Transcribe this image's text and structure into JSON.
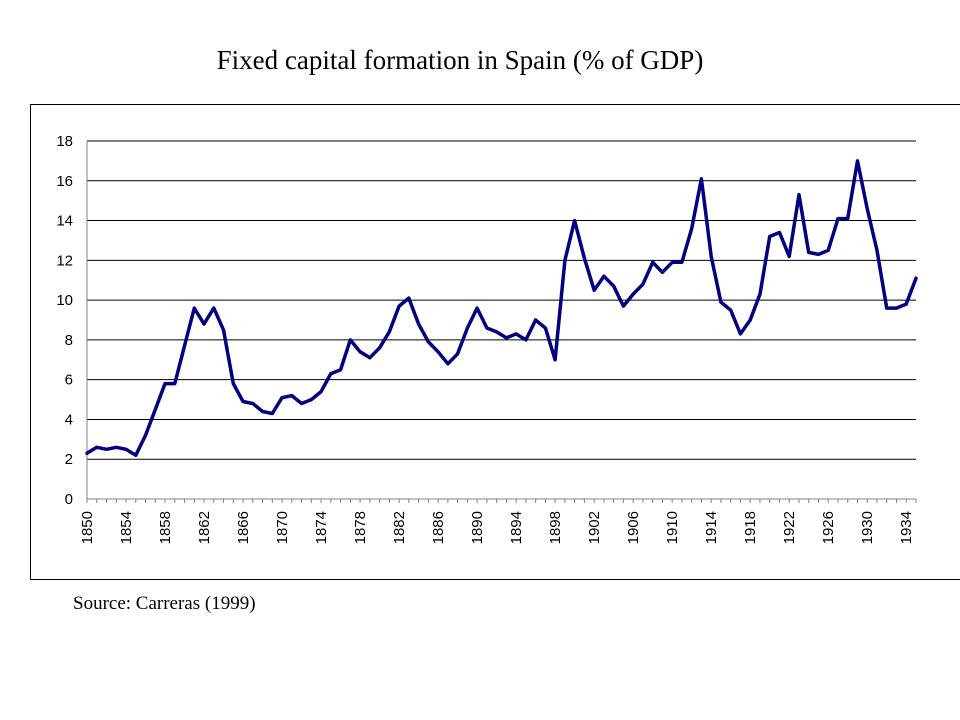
{
  "page": {
    "title": "Fixed capital formation in Spain (% of GDP)",
    "source": "Source: Carreras (1999)"
  },
  "chart_data": {
    "type": "line",
    "title": "Fixed capital formation in Spain (% of GDP)",
    "xlabel": "",
    "ylabel": "",
    "x": [
      1850,
      1851,
      1852,
      1853,
      1854,
      1855,
      1856,
      1857,
      1858,
      1859,
      1860,
      1861,
      1862,
      1863,
      1864,
      1865,
      1866,
      1867,
      1868,
      1869,
      1870,
      1871,
      1872,
      1873,
      1874,
      1875,
      1876,
      1877,
      1878,
      1879,
      1880,
      1881,
      1882,
      1883,
      1884,
      1885,
      1886,
      1887,
      1888,
      1889,
      1890,
      1891,
      1892,
      1893,
      1894,
      1895,
      1896,
      1897,
      1898,
      1899,
      1900,
      1901,
      1902,
      1903,
      1904,
      1905,
      1906,
      1907,
      1908,
      1909,
      1910,
      1911,
      1912,
      1913,
      1914,
      1915,
      1916,
      1917,
      1918,
      1919,
      1920,
      1921,
      1922,
      1923,
      1924,
      1925,
      1926,
      1927,
      1928,
      1929,
      1930,
      1931,
      1932,
      1933,
      1934,
      1935
    ],
    "series": [
      {
        "values": [
          2.3,
          2.6,
          2.5,
          2.6,
          2.5,
          2.2,
          3.2,
          4.5,
          5.8,
          5.8,
          7.7,
          9.6,
          8.8,
          9.6,
          8.5,
          5.8,
          4.9,
          4.8,
          4.4,
          4.3,
          5.1,
          5.2,
          4.8,
          5.0,
          5.4,
          6.3,
          6.5,
          8.0,
          7.4,
          7.1,
          7.6,
          8.4,
          9.7,
          10.1,
          8.8,
          7.9,
          7.4,
          6.8,
          7.3,
          8.6,
          9.6,
          8.6,
          8.4,
          8.1,
          8.3,
          8.0,
          9.0,
          8.6,
          7.0,
          12.0,
          14.0,
          12.1,
          10.5,
          11.2,
          10.7,
          9.7,
          10.3,
          10.8,
          11.9,
          11.4,
          11.9,
          11.9,
          13.6,
          16.1,
          12.2,
          9.9,
          9.5,
          8.3,
          9.0,
          10.3,
          13.2,
          13.4,
          12.2,
          15.3,
          12.4,
          12.3,
          12.5,
          14.1,
          14.1,
          17.0,
          14.6,
          12.5,
          9.6,
          9.6,
          9.8,
          11.1
        ]
      }
    ],
    "ylim": [
      0,
      18
    ],
    "yticks": [
      0,
      2,
      4,
      6,
      8,
      10,
      12,
      14,
      16,
      18
    ],
    "xticks": [
      1850,
      1854,
      1858,
      1862,
      1866,
      1870,
      1874,
      1878,
      1882,
      1886,
      1890,
      1894,
      1898,
      1902,
      1906,
      1910,
      1914,
      1918,
      1922,
      1926,
      1930,
      1934
    ],
    "grid": true,
    "legend": "none",
    "colors": {
      "line": "#000080",
      "grid": "#000000",
      "axis": "#808080"
    }
  }
}
